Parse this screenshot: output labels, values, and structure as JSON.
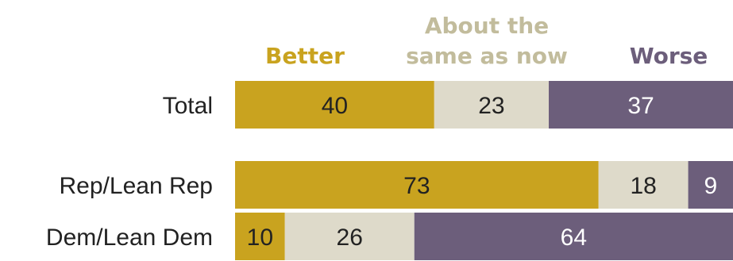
{
  "chart_data": {
    "type": "bar",
    "orientation": "horizontal",
    "stacked": true,
    "xlim": [
      0,
      100
    ],
    "categories": [
      "Total",
      "Rep/Lean Rep",
      "Dem/Lean Dem"
    ],
    "series": [
      {
        "name": "Better",
        "values": [
          40,
          73,
          10
        ],
        "color": "#C9A31F"
      },
      {
        "name": "About the same as now",
        "values": [
          23,
          18,
          26
        ],
        "color": "#DEDACA"
      },
      {
        "name": "Worse",
        "values": [
          37,
          9,
          64
        ],
        "color": "#6C5E7B"
      }
    ],
    "legend": {
      "placement": "top",
      "entries": [
        {
          "lines": [
            "Better"
          ],
          "color": "#C9A31F"
        },
        {
          "lines": [
            "About the",
            "same as now"
          ],
          "color": "#C2BC9C"
        },
        {
          "lines": [
            "Worse"
          ],
          "color": "#6C5E7B"
        }
      ]
    }
  }
}
